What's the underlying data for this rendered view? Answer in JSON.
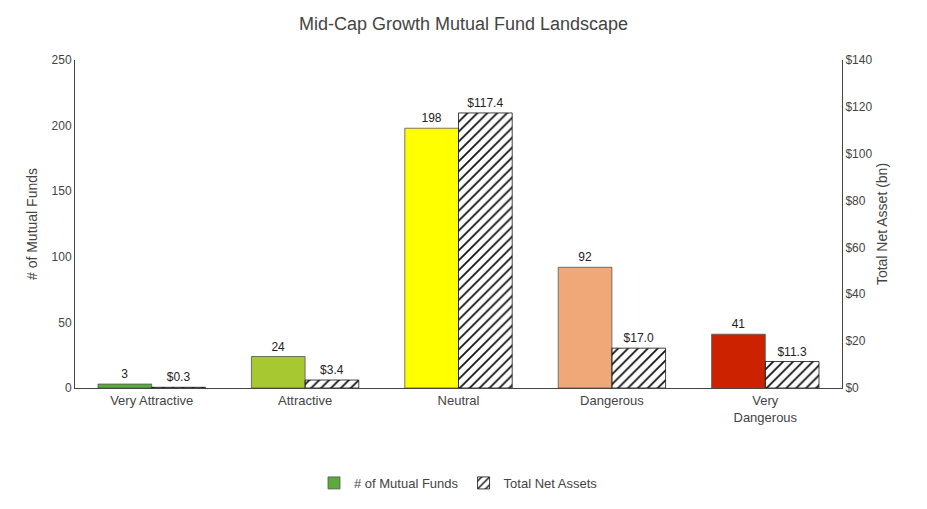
{
  "chart_data": {
    "type": "bar",
    "title": "Mid-Cap Growth Mutual Fund Landscape",
    "categories": [
      "Very Attractive",
      "Attractive",
      "Neutral",
      "Dangerous",
      "Very\nDangerous"
    ],
    "series": [
      {
        "name": "# of Mutual Funds",
        "colors": [
          "#5aaa3c",
          "#a8c832",
          "#ffff00",
          "#f0a878",
          "#cc2200"
        ],
        "values": [
          3,
          24,
          198,
          92,
          41
        ]
      },
      {
        "name": "Total Net Assets",
        "axis": "y2",
        "color": "#aad4f0",
        "values": [
          0.3,
          3.4,
          117.4,
          17.0,
          11.3
        ],
        "value_labels": [
          "$0.3",
          "$3.4",
          "$117.4",
          "$17.0",
          "$11.3"
        ]
      }
    ],
    "ylabel": "# of Mutual Funds",
    "y2label": "Total Net Asset (bn)",
    "ylim": [
      0,
      250
    ],
    "yticks": [
      0,
      50,
      100,
      150,
      200,
      250
    ],
    "y2lim": [
      0,
      140
    ],
    "y2ticks": [
      {
        "value": 0,
        "label": "$0"
      },
      {
        "value": 20,
        "label": "$20"
      },
      {
        "value": 40,
        "label": "$40"
      },
      {
        "value": 60,
        "label": "$60"
      },
      {
        "value": 80,
        "label": "$80"
      },
      {
        "value": 100,
        "label": "$100"
      },
      {
        "value": 120,
        "label": "$120"
      },
      {
        "value": 140,
        "label": "$140"
      }
    ],
    "grid": false,
    "legend": "bottom",
    "data_labels": true
  }
}
